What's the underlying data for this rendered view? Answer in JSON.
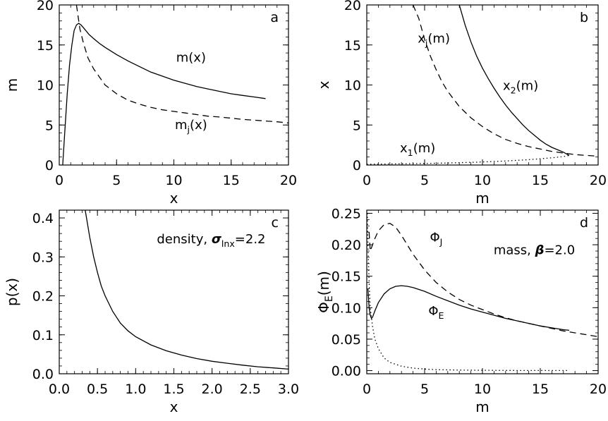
{
  "chart_data": [
    {
      "panel": "a",
      "type": "line",
      "xlabel": "x",
      "ylabel": "m",
      "xlim": [
        0,
        20
      ],
      "ylim": [
        0,
        20
      ],
      "xticks": [
        "0",
        "5",
        "10",
        "15",
        "20"
      ],
      "yticks": [
        "0",
        "5",
        "10",
        "15",
        "20"
      ],
      "annotations": [
        {
          "text": "m(x)",
          "x": 11.5,
          "y": 12.9
        },
        {
          "text": "mj(x)",
          "x": 11.5,
          "y": 4.5
        }
      ],
      "series": [
        {
          "style": "solid",
          "x": [
            0.3,
            0.5,
            0.7,
            0.9,
            1.1,
            1.3,
            1.5,
            1.7,
            1.9,
            2.2,
            2.6,
            3.0,
            3.5,
            4,
            5,
            6,
            7,
            8,
            9,
            10,
            11,
            12,
            13,
            14,
            15,
            16,
            17,
            18
          ],
          "y": [
            0,
            4.5,
            9,
            12.5,
            15,
            16.8,
            17.5,
            17.7,
            17.5,
            17,
            16.3,
            15.8,
            15.2,
            14.7,
            13.8,
            13.0,
            12.3,
            11.6,
            11.1,
            10.6,
            10.2,
            9.8,
            9.5,
            9.2,
            8.9,
            8.7,
            8.5,
            8.3
          ]
        },
        {
          "style": "dashed",
          "x": [
            1.5,
            1.8,
            2.1,
            2.5,
            3,
            3.5,
            4,
            5,
            6,
            7,
            8,
            9,
            10,
            11,
            12,
            13,
            14,
            15,
            16,
            17,
            18,
            19,
            20
          ],
          "y": [
            20,
            17,
            15.3,
            13.4,
            12,
            11,
            10,
            8.9,
            8.1,
            7.6,
            7.2,
            6.9,
            6.7,
            6.5,
            6.3,
            6.1,
            6.0,
            5.85,
            5.7,
            5.6,
            5.5,
            5.4,
            5.25
          ]
        }
      ]
    },
    {
      "panel": "b",
      "type": "line",
      "xlabel": "m",
      "ylabel": "x",
      "xlim": [
        0,
        20
      ],
      "ylim": [
        0,
        20
      ],
      "xticks": [
        "0",
        "5",
        "10",
        "15",
        "20"
      ],
      "yticks": [
        "0",
        "5",
        "10",
        "15",
        "20"
      ],
      "annotations": [
        {
          "text": "xj(m)",
          "x": 5.8,
          "y": 15.3
        },
        {
          "text": "x2(m)",
          "x": 13.3,
          "y": 9.4
        },
        {
          "text": "x1(m)",
          "x": 4.4,
          "y": 1.6
        }
      ],
      "series": [
        {
          "style": "solid",
          "x": [
            8,
            8.5,
            9,
            9.5,
            10,
            10.5,
            11,
            11.5,
            12,
            12.5,
            13,
            13.5,
            14,
            14.5,
            15,
            15.5,
            16,
            16.5,
            17,
            17.5
          ],
          "y": [
            20,
            17.5,
            15.4,
            13.6,
            12.1,
            10.8,
            9.6,
            8.5,
            7.5,
            6.6,
            5.8,
            5.0,
            4.3,
            3.7,
            3.1,
            2.6,
            2.2,
            1.9,
            1.6,
            1.2
          ]
        },
        {
          "style": "dashed",
          "x": [
            4,
            4.5,
            5,
            5.5,
            6,
            6.5,
            7,
            8,
            9,
            10,
            11,
            12,
            13,
            14,
            15,
            16,
            17,
            18,
            19,
            20
          ],
          "y": [
            20,
            18.3,
            15.7,
            13.6,
            11.9,
            10.4,
            9.2,
            7.3,
            5.9,
            4.8,
            3.9,
            3.2,
            2.7,
            2.3,
            2.0,
            1.7,
            1.5,
            1.3,
            1.2,
            1.1
          ]
        },
        {
          "style": "dotted",
          "x": [
            0,
            2,
            4,
            6,
            8,
            10,
            12,
            14,
            15,
            16,
            17,
            17.5
          ],
          "y": [
            0.1,
            0.13,
            0.17,
            0.22,
            0.29,
            0.38,
            0.5,
            0.67,
            0.78,
            0.9,
            1.05,
            1.2
          ]
        }
      ]
    },
    {
      "panel": "c",
      "type": "line",
      "xlabel": "x",
      "ylabel": "p(x)",
      "xlim": [
        0,
        3
      ],
      "ylim": [
        0,
        0.42
      ],
      "xticks": [
        "0.0",
        "0.5",
        "1.0",
        "1.5",
        "2.0",
        "2.5",
        "3.0"
      ],
      "yticks": [
        "0.0",
        "0.1",
        "0.2",
        "0.3",
        "0.4"
      ],
      "annotations": [
        {
          "text": "density, σlnx=2.2",
          "x": 2.7,
          "y": 0.335
        }
      ],
      "series": [
        {
          "style": "solid",
          "x": [
            0.34,
            0.4,
            0.45,
            0.5,
            0.55,
            0.6,
            0.7,
            0.8,
            0.9,
            1.0,
            1.2,
            1.4,
            1.6,
            1.8,
            2.0,
            2.2,
            2.4,
            2.6,
            2.8,
            3.0
          ],
          "y": [
            0.42,
            0.35,
            0.3,
            0.26,
            0.225,
            0.2,
            0.16,
            0.13,
            0.11,
            0.095,
            0.074,
            0.059,
            0.048,
            0.039,
            0.032,
            0.027,
            0.022,
            0.018,
            0.015,
            0.012
          ]
        }
      ]
    },
    {
      "panel": "d",
      "type": "line",
      "xlabel": "m",
      "ylabel": "ΦE(m)",
      "xlim": [
        0,
        20
      ],
      "ylim": [
        -0.005,
        0.255
      ],
      "xticks": [
        "0",
        "5",
        "10",
        "15",
        "20"
      ],
      "yticks": [
        "0.00",
        "0.05",
        "0.10",
        "0.15",
        "0.20",
        "0.25"
      ],
      "annotations": [
        {
          "text": "ΦJ",
          "x": 6,
          "y": 0.205
        },
        {
          "text": "ΦE",
          "x": 6,
          "y": 0.088
        },
        {
          "text": "mass, β=2.0",
          "x": 18,
          "y": 0.185
        }
      ],
      "series": [
        {
          "style": "solid",
          "x": [
            0.1,
            0.2,
            0.3,
            0.4,
            0.5,
            0.7,
            1,
            1.5,
            2,
            2.5,
            3,
            3.5,
            4,
            5,
            6,
            7,
            8,
            9,
            10,
            11,
            12,
            13,
            14,
            15,
            16,
            17,
            17.5
          ],
          "y": [
            0.13,
            0.1,
            0.088,
            0.083,
            0.085,
            0.095,
            0.108,
            0.122,
            0.13,
            0.134,
            0.135,
            0.134,
            0.132,
            0.126,
            0.118,
            0.111,
            0.104,
            0.098,
            0.093,
            0.088,
            0.083,
            0.079,
            0.075,
            0.071,
            0.068,
            0.065,
            0.064
          ]
        },
        {
          "style": "dashed",
          "x": [
            0.2,
            0.3,
            0.5,
            0.7,
            1,
            1.5,
            2,
            2.5,
            3,
            3.5,
            4,
            5,
            6,
            7,
            8,
            9,
            10,
            11,
            12,
            13,
            14,
            15,
            16,
            17,
            18,
            19,
            20
          ],
          "y": [
            0.22,
            0.19,
            0.2,
            0.21,
            0.222,
            0.232,
            0.234,
            0.228,
            0.215,
            0.2,
            0.185,
            0.16,
            0.14,
            0.125,
            0.113,
            0.104,
            0.097,
            0.09,
            0.084,
            0.079,
            0.075,
            0.071,
            0.067,
            0.063,
            0.06,
            0.057,
            0.054
          ]
        },
        {
          "style": "dotted",
          "x": [
            0.05,
            0.1,
            0.2,
            0.3,
            0.5,
            0.7,
            1,
            1.5,
            2,
            3,
            4,
            5,
            6,
            8,
            10,
            12,
            14,
            16,
            17.5
          ],
          "y": [
            0.25,
            0.2,
            0.14,
            0.1,
            0.07,
            0.05,
            0.035,
            0.02,
            0.013,
            0.007,
            0.004,
            0.0025,
            0.0015,
            0.0008,
            0.0005,
            0.0003,
            0.0002,
            0.0001,
            0.0001
          ]
        }
      ]
    }
  ]
}
